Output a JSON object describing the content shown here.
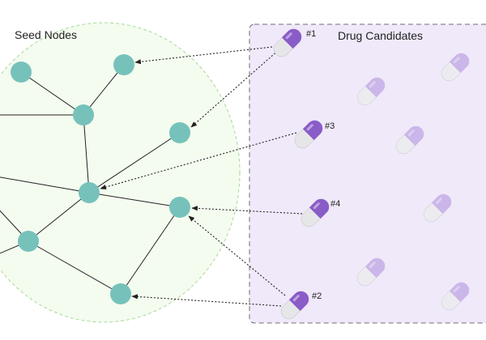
{
  "seed_region": {
    "title": "Seed Nodes"
  },
  "candidate_region": {
    "title": "Drug Candidates"
  },
  "candidates": [
    {
      "id": "1",
      "label": "#1"
    },
    {
      "id": "2",
      "label": "#2"
    },
    {
      "id": "3",
      "label": "#3"
    },
    {
      "id": "4",
      "label": "#4"
    }
  ],
  "colors": {
    "node_fill": "#76c2bb",
    "seed_region_fill": "#f4fbef",
    "seed_region_border": "#a9d99a",
    "candidate_panel_fill": "#f0e9f9",
    "candidate_panel_border": "#6e6e7a",
    "pill_primary": "#8a5cc8",
    "pill_faded": "#c2aae6",
    "pill_cap": "#e6e6e8",
    "edge": "#222222",
    "arrow": "#222222"
  },
  "icons": {
    "candidate": "capsule-icon"
  }
}
